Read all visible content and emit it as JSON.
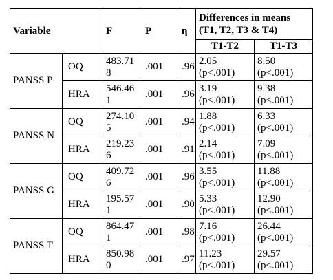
{
  "header": {
    "variable": "Variable",
    "f": "F",
    "p": "P",
    "eta": "η",
    "diff_title": "Differences in means (T1, T2, T3 & T4)",
    "t1t2": "T1-T2",
    "t1t3": "T1-T3"
  },
  "groups": [
    {
      "name": "PANSS P",
      "rows": [
        {
          "sub": "OQ",
          "f": "483.718",
          "p": ".001",
          "eta": ".96",
          "d12": "2.05 (p<.001)",
          "d13": "8.50 (p<.001)"
        },
        {
          "sub": "HRA",
          "f": "546.461",
          "p": ".001",
          "eta": ".96",
          "d12": "3.19 (p<.001)",
          "d13": "9.38 (p<.001)"
        }
      ]
    },
    {
      "name": "PANSS N",
      "rows": [
        {
          "sub": "OQ",
          "f": "274.105",
          "p": ".001",
          "eta": ".94",
          "d12": "1.88 (p<.001)",
          "d13": "6.33 (p<.001)"
        },
        {
          "sub": "HRA",
          "f": "219.236",
          "p": ".001",
          "eta": ".91",
          "d12": "2.14 (p<.001)",
          "d13": "7.09 (p<.001)"
        }
      ]
    },
    {
      "name": "PANSS G",
      "rows": [
        {
          "sub": "OQ",
          "f": "409.726",
          "p": ".001",
          "eta": ".96",
          "d12": "3.55 (p<.001)",
          "d13": "11.88 (p<.001)"
        },
        {
          "sub": "HRA",
          "f": "195.571",
          "p": ".001",
          "eta": ".90",
          "d12": "5.33 (p<.001)",
          "d13": "12.90 (p<.001)"
        }
      ]
    },
    {
      "name": "PANSS T",
      "rows": [
        {
          "sub": "OQ",
          "f": "864.471",
          "p": ".001",
          "eta": ".98",
          "d12": "7.16 (p<.001)",
          "d13": "26.44 (p<.001)"
        },
        {
          "sub": "HRA",
          "f": "850.980",
          "p": ".001",
          "eta": ".97",
          "d12": "11.23 (p<.001)",
          "d13": "29.57 (p<.001)"
        }
      ]
    }
  ]
}
